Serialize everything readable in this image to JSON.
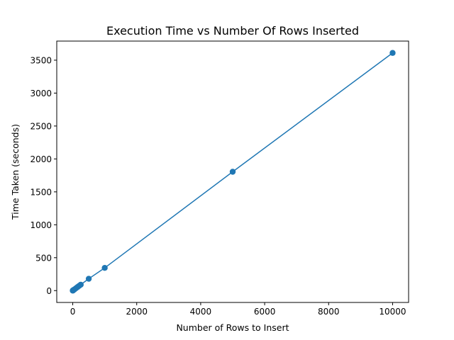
{
  "chart_data": {
    "type": "line",
    "title": "Execution Time vs Number Of Rows Inserted",
    "xlabel": "Number of Rows to Insert",
    "ylabel": "Time Taken (seconds)",
    "xlim": [
      -500,
      10500
    ],
    "ylim": [
      -180,
      3790
    ],
    "x_ticks": [
      0,
      2000,
      4000,
      6000,
      8000,
      10000
    ],
    "y_ticks": [
      0,
      500,
      1000,
      1500,
      2000,
      2500,
      3000,
      3500
    ],
    "grid": false,
    "legend": "none",
    "series": [
      {
        "color": "#1f77b4",
        "marker": "circle",
        "x": [
          1,
          5,
          10,
          25,
          50,
          100,
          150,
          200,
          250,
          500,
          1000,
          5000,
          10000
        ],
        "y": [
          0.4,
          1.8,
          3.6,
          9,
          18,
          36,
          54,
          72,
          90,
          180,
          345,
          1805,
          3610
        ]
      }
    ]
  }
}
